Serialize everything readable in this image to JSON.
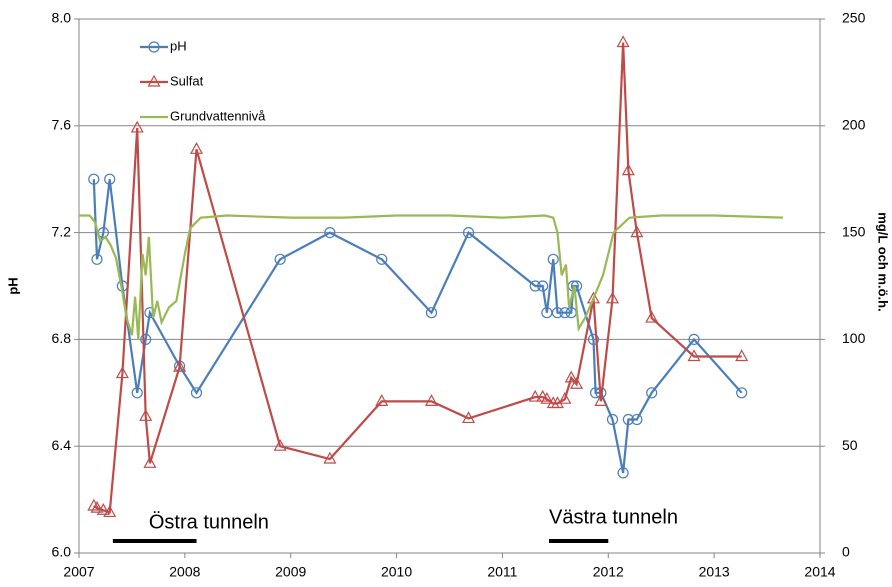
{
  "chart_data": {
    "type": "line",
    "xlim": [
      2007,
      2014
    ],
    "xticks": [
      2007,
      2008,
      2009,
      2010,
      2011,
      2012,
      2013,
      2014
    ],
    "ylim": [
      6,
      8
    ],
    "yticks": [
      {
        "value": 6,
        "label": "6.0"
      },
      6.4,
      6.8,
      7.2,
      7.6,
      {
        "value": 8,
        "label": "8.0"
      }
    ],
    "y2lim": [
      0,
      250
    ],
    "y2ticks": [
      0,
      50,
      100,
      150,
      200,
      250
    ],
    "ylabel": "pH",
    "y2label": "mg/L och m.ö.h.",
    "grid": true,
    "legend": "upper left",
    "series": [
      {
        "name": "pH",
        "color": "#4a7ebb",
        "marker": "circle",
        "x": [
          2007.14,
          2007.17,
          2007.23,
          2007.29,
          2007.41,
          2007.55,
          2007.63,
          2007.67,
          2007.95,
          2008.11,
          2008.9,
          2009.37,
          2009.86,
          2010.33,
          2010.68,
          2011.31,
          2011.38,
          2011.42,
          2011.48,
          2011.52,
          2011.59,
          2011.65,
          2011.67,
          2011.7,
          2011.86,
          2011.88,
          2011.93,
          2012.04,
          2012.14,
          2012.19,
          2012.27,
          2012.41,
          2012.81,
          2013.26
        ],
        "values": [
          7.4,
          7.1,
          7.2,
          7.4,
          7.0,
          6.6,
          6.8,
          6.9,
          6.7,
          6.6,
          7.1,
          7.2,
          7.1,
          6.9,
          7.2,
          7.0,
          7.0,
          6.9,
          7.1,
          6.9,
          6.9,
          6.9,
          7.0,
          7.0,
          6.8,
          6.6,
          6.6,
          6.5,
          6.3,
          6.5,
          6.5,
          6.6,
          6.8,
          6.6
        ]
      },
      {
        "name": "Sulfat",
        "color": "#be4b48",
        "marker": "triangle",
        "axis": "y2",
        "x": [
          2007.14,
          2007.17,
          2007.23,
          2007.29,
          2007.41,
          2007.55,
          2007.63,
          2007.67,
          2007.95,
          2008.11,
          2008.9,
          2009.37,
          2009.86,
          2010.33,
          2010.68,
          2011.31,
          2011.38,
          2011.42,
          2011.48,
          2011.52,
          2011.59,
          2011.65,
          2011.7,
          2011.86,
          2011.93,
          2012.04,
          2012.14,
          2012.19,
          2012.27,
          2012.41,
          2012.81,
          2013.26
        ],
        "values": [
          22,
          21,
          20,
          19,
          84,
          199,
          64,
          42,
          87,
          189,
          50,
          44,
          71,
          71,
          63,
          73,
          73,
          72,
          70,
          70,
          72,
          82,
          79,
          119,
          71,
          119,
          239,
          179,
          150,
          110,
          92,
          92
        ]
      },
      {
        "name": "Grundvattennivå",
        "color": "#98b954",
        "axis": "y2",
        "x": [
          2007.0,
          2007.1,
          2007.15,
          2007.2,
          2007.25,
          2007.3,
          2007.35,
          2007.4,
          2007.45,
          2007.5,
          2007.53,
          2007.56,
          2007.6,
          2007.63,
          2007.66,
          2007.7,
          2007.74,
          2007.78,
          2007.85,
          2007.92,
          2008.0,
          2008.05,
          2008.15,
          2008.4,
          2009.0,
          2009.5,
          2010.0,
          2010.5,
          2011.0,
          2011.4,
          2011.48,
          2011.52,
          2011.56,
          2011.6,
          2011.63,
          2011.68,
          2011.72,
          2011.78,
          2011.85,
          2011.95,
          2012.05,
          2012.2,
          2012.5,
          2013.0,
          2013.65
        ],
        "values": [
          158,
          158,
          155,
          146,
          148,
          144,
          138,
          125,
          110,
          102,
          120,
          100,
          140,
          130,
          148,
          110,
          118,
          108,
          115,
          118,
          140,
          152,
          157,
          158,
          157,
          157,
          158,
          158,
          157,
          158,
          157,
          150,
          130,
          135,
          115,
          125,
          105,
          110,
          118,
          130,
          150,
          157,
          158,
          158,
          157
        ]
      }
    ],
    "annotations": [
      {
        "text": "Östra tunneln",
        "x": [
          2007.32,
          2008.11
        ]
      },
      {
        "text": "Västra tunneln",
        "x": [
          2011.44,
          2012.0
        ]
      }
    ]
  }
}
